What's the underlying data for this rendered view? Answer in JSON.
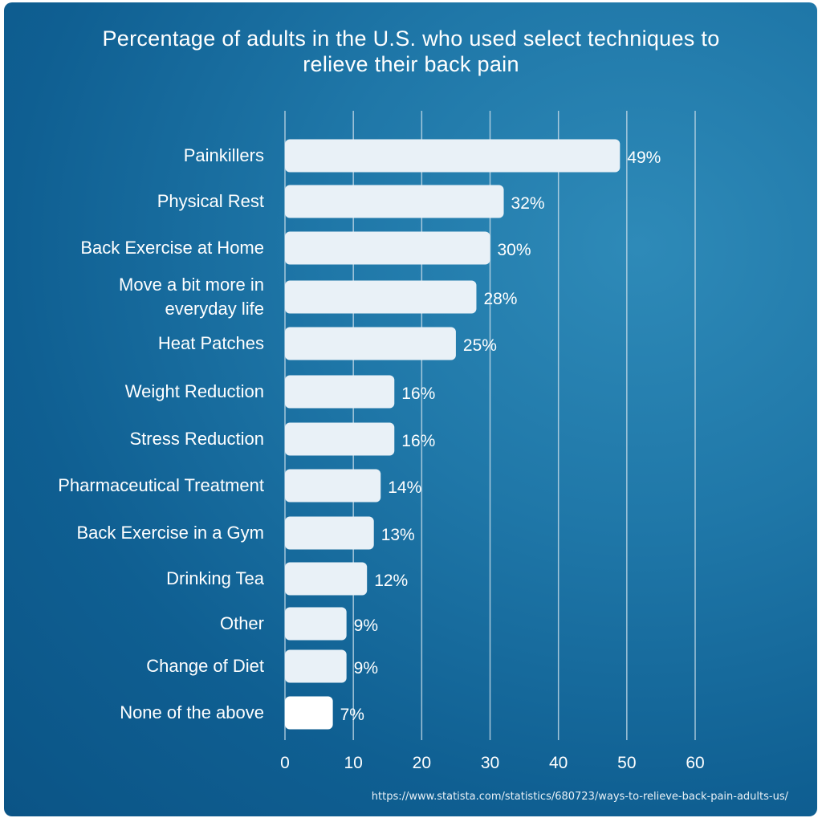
{
  "colors": {
    "bar_fill": "#e9f1f7",
    "bar_last": "#ffffff",
    "gridline": "#c9dde9",
    "text": "#ffffff"
  },
  "source_url": "https://www.statista.com/statistics/680723/ways-to-relieve-back-pain-adults-us/",
  "chart_data": {
    "type": "bar",
    "orientation": "horizontal",
    "title": "Percentage of adults in the U.S. who used select techniques to relieve their back pain",
    "title_lines": [
      "Percentage of adults in the U.S. who used select techniques to",
      "relieve their back pain"
    ],
    "categories": [
      "Painkillers",
      "Physical Rest",
      "Back Exercise at Home",
      "Move a bit more in everyday life",
      "Heat Patches",
      "Weight Reduction",
      "Stress Reduction",
      "Pharmaceutical Treatment",
      "Back Exercise in a Gym",
      "Drinking Tea",
      "Other",
      "Change of Diet",
      "None of the above"
    ],
    "category_lines": [
      [
        "Painkillers"
      ],
      [
        "Physical Rest"
      ],
      [
        "Back Exercise at Home"
      ],
      [
        "Move a bit more in",
        "everyday life"
      ],
      [
        "Heat Patches"
      ],
      [
        "Weight Reduction"
      ],
      [
        "Stress Reduction"
      ],
      [
        "Pharmaceutical Treatment"
      ],
      [
        "Back Exercise in a Gym"
      ],
      [
        "Drinking Tea"
      ],
      [
        "Other"
      ],
      [
        "Change of Diet"
      ],
      [
        "None of the above"
      ]
    ],
    "values": [
      49,
      32,
      30,
      28,
      25,
      16,
      16,
      14,
      13,
      12,
      9,
      9,
      7
    ],
    "data_labels": [
      "49%",
      "32%",
      "30%",
      "28%",
      "25%",
      "16%",
      "16%",
      "14%",
      "13%",
      "12%",
      "9%",
      "9%",
      "7%"
    ],
    "x_ticks": [
      0,
      10,
      20,
      30,
      40,
      50,
      60
    ],
    "xlim": [
      0,
      60
    ],
    "xlabel": "",
    "ylabel": "",
    "grid": true,
    "legend": false
  }
}
